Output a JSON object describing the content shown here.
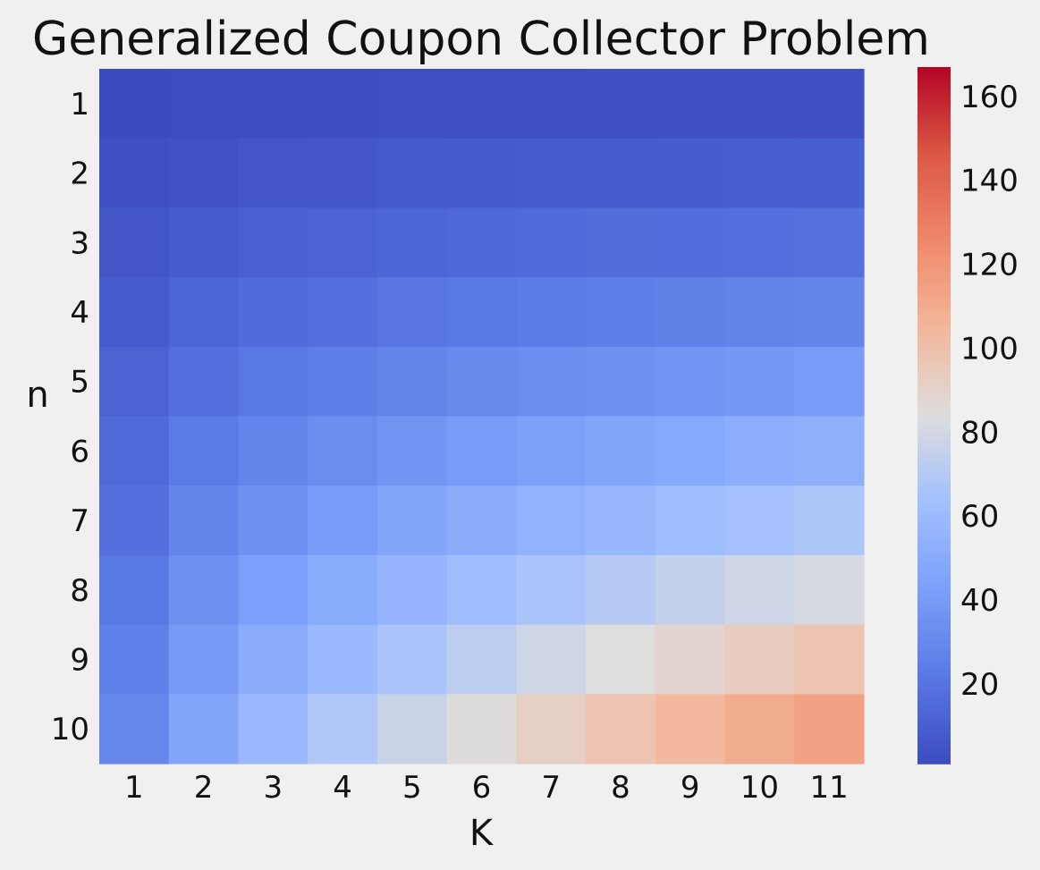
{
  "chart_data": {
    "type": "heatmap",
    "title": "Generalized Coupon Collector Problem",
    "xlabel": "K",
    "ylabel": "n",
    "x": [
      "1",
      "2",
      "3",
      "4",
      "5",
      "6",
      "7",
      "8",
      "9",
      "10",
      "11"
    ],
    "y": [
      "1",
      "2",
      "3",
      "4",
      "5",
      "6",
      "7",
      "8",
      "9",
      "10"
    ],
    "colormap": "coolwarm",
    "vmin": 1,
    "vmax": 167,
    "colorbar_ticks": [
      20,
      40,
      60,
      80,
      100,
      120,
      140,
      160
    ],
    "grid": false,
    "values": [
      [
        1.0,
        1.5,
        1.8,
        2.1,
        2.3,
        2.5,
        2.6,
        2.7,
        2.8,
        2.9,
        3.0
      ],
      [
        3.0,
        4.5,
        5.5,
        6.3,
        7.0,
        7.6,
        8.1,
        8.6,
        9.0,
        9.4,
        9.8
      ],
      [
        5.5,
        8.3,
        10.2,
        11.8,
        13.1,
        14.2,
        15.2,
        16.1,
        16.9,
        17.7,
        18.4
      ],
      [
        8.3,
        12.7,
        15.7,
        18.1,
        20.2,
        22.0,
        23.6,
        25.0,
        26.3,
        27.6,
        28.7
      ],
      [
        11.4,
        17.5,
        21.7,
        25.2,
        28.1,
        30.7,
        33.0,
        35.1,
        37.0,
        38.8,
        40.4
      ],
      [
        14.7,
        22.7,
        28.3,
        32.9,
        36.8,
        40.2,
        43.3,
        46.1,
        48.6,
        51.0,
        53.2
      ],
      [
        18.2,
        28.2,
        35.3,
        41.1,
        46.1,
        50.4,
        54.4,
        57.9,
        61.2,
        64.3,
        67.2
      ],
      [
        21.7,
        34.0,
        42.7,
        49.8,
        55.9,
        61.3,
        66.1,
        70.5,
        74.6,
        78.4,
        81.9
      ],
      [
        25.5,
        40.0,
        50.4,
        58.9,
        66.2,
        72.7,
        78.5,
        83.9,
        88.8,
        93.5,
        97.7
      ],
      [
        29.3,
        46.3,
        58.4,
        68.4,
        77.0,
        84.6,
        91.5,
        97.9,
        103.7,
        109.3,
        114.3
      ]
    ]
  }
}
